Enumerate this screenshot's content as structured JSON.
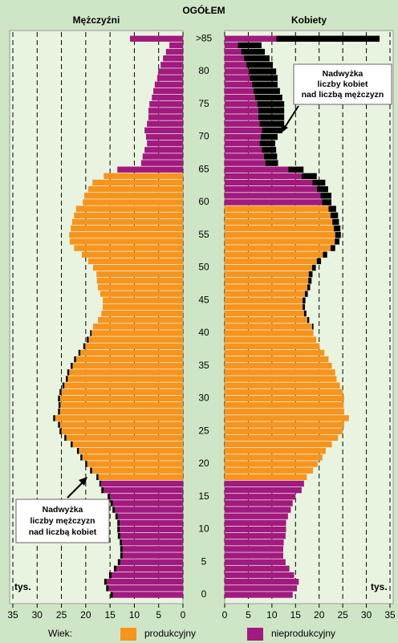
{
  "chart_data": {
    "type": "pyramid",
    "title": "OGÓŁEM",
    "categories": [
      "0",
      null,
      null,
      null,
      null,
      "5",
      null,
      null,
      null,
      null,
      "10",
      null,
      null,
      null,
      null,
      "15",
      null,
      null,
      null,
      null,
      "20",
      null,
      null,
      null,
      null,
      "25",
      null,
      null,
      null,
      null,
      "30",
      null,
      null,
      null,
      null,
      "35",
      null,
      null,
      null,
      null,
      "40",
      null,
      null,
      null,
      null,
      "45",
      null,
      null,
      null,
      null,
      "50",
      null,
      null,
      null,
      null,
      "55",
      null,
      null,
      null,
      null,
      "60",
      null,
      null,
      null,
      null,
      "65",
      null,
      null,
      null,
      null,
      "70",
      null,
      null,
      null,
      null,
      "75",
      null,
      null,
      null,
      null,
      "80",
      null,
      null,
      null,
      null,
      ">85"
    ],
    "series": [
      {
        "name": "Mężczyźni",
        "unit": "tys.",
        "xlim": [
          0,
          35
        ],
        "xticks": [
          35,
          30,
          25,
          20,
          15,
          10,
          5,
          0
        ],
        "productive_range": [
          18,
          64
        ],
        "values": [
          14.9,
          15.8,
          16.2,
          15.2,
          14.2,
          13.4,
          12.9,
          12.9,
          13.0,
          13.4,
          13.5,
          13.5,
          13.9,
          14.5,
          14.9,
          15.5,
          16.8,
          17.2,
          17.8,
          19.1,
          20.1,
          21.1,
          21.8,
          23.1,
          24.4,
          25.4,
          25.7,
          26.7,
          25.7,
          25.6,
          25.7,
          25.4,
          24.8,
          24.1,
          23.8,
          23.1,
          22.4,
          21.5,
          20.5,
          19.8,
          19.1,
          18.5,
          17.5,
          16.8,
          16.5,
          16.5,
          17.0,
          17.5,
          17.7,
          17.8,
          18.5,
          19.5,
          20.8,
          22.4,
          23.3,
          23.4,
          23.1,
          22.8,
          22.4,
          22.0,
          20.6,
          20.3,
          19.5,
          18.6,
          16.3,
          13.5,
          8.6,
          8.3,
          7.9,
          7.4,
          7.6,
          7.9,
          7.4,
          7.1,
          7.1,
          6.9,
          6.4,
          6.1,
          5.8,
          5.3,
          5.1,
          4.6,
          4.1,
          3.5,
          2.8,
          10.9
        ]
      },
      {
        "name": "Kobiety",
        "unit": "tys.",
        "xlim": [
          0,
          35
        ],
        "xticks": [
          0,
          5,
          10,
          15,
          20,
          25,
          30,
          35
        ],
        "productive_range": [
          18,
          59
        ],
        "values": [
          14.4,
          15.3,
          15.7,
          14.7,
          13.7,
          12.9,
          12.4,
          12.4,
          12.5,
          12.9,
          13.0,
          13.0,
          13.4,
          14.0,
          14.4,
          15.0,
          16.3,
          16.8,
          17.4,
          18.7,
          19.7,
          20.7,
          21.4,
          22.7,
          24.0,
          25.0,
          25.3,
          26.3,
          25.3,
          25.2,
          25.3,
          25.0,
          24.4,
          23.7,
          23.4,
          22.7,
          22.0,
          21.1,
          20.1,
          19.4,
          18.8,
          18.8,
          17.9,
          17.3,
          17.0,
          17.1,
          17.6,
          18.1,
          18.4,
          18.6,
          19.3,
          20.4,
          21.7,
          23.4,
          24.3,
          24.6,
          24.5,
          24.2,
          24.0,
          23.6,
          22.6,
          22.6,
          21.9,
          21.3,
          19.5,
          16.7,
          11.3,
          11.1,
          10.9,
          10.7,
          11.2,
          12.2,
          12.6,
          12.6,
          12.6,
          12.6,
          12.2,
          11.7,
          11.2,
          11.2,
          10.9,
          10.2,
          9.5,
          8.5,
          7.8,
          32.8
        ]
      }
    ],
    "surplus_color": "#000000",
    "legend": {
      "title": "Wiek:",
      "items": [
        {
          "name": "produkcyjny",
          "color": "#f7941d"
        },
        {
          "name": "nieprodukcyjny",
          "color": "#a2197f"
        }
      ]
    },
    "grid": true,
    "annotations": [
      {
        "lines": [
          "Nadwyżka",
          "liczby kobiet",
          "nad liczbą mężczyzn"
        ]
      },
      {
        "lines": [
          "Nadwyżka",
          "liczby mężczyzn",
          "nad liczbą kobiet"
        ]
      }
    ]
  }
}
